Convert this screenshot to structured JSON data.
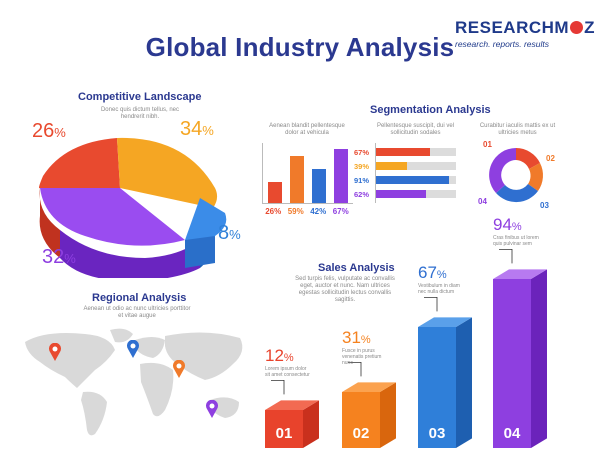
{
  "title": "Global Industry Analysis",
  "logo": {
    "word_left": "RESEARCH",
    "word_right": "M",
    "word_o": "O",
    "word_z": "Z",
    "tagline": "research. reports. results"
  },
  "competitive": {
    "heading": "Competitive Landscape",
    "text": "Donec quis dictum tellus, nec hendrerit nibh.",
    "slices": [
      {
        "value": "26",
        "unit": "%",
        "color": "#e84a2f"
      },
      {
        "value": "34",
        "unit": "%",
        "color": "#f5a623"
      },
      {
        "value": "8",
        "unit": "%",
        "color": "#2f80d8"
      },
      {
        "value": "32",
        "unit": "%",
        "color": "#8e3fe0"
      }
    ]
  },
  "segmentation": {
    "heading": "Segmentation Analysis",
    "col1_text": "Aenean blandit pellentesque dolor at vehicula",
    "col2_text": "Pellentesque suscipit, dui vel sollicitudin sodales",
    "col3_text": "Curabitur iaculis mattis ex ut ultricies metus",
    "vbars": [
      {
        "label": "26%",
        "value": 26,
        "color": "#e84a2f"
      },
      {
        "label": "59%",
        "value": 59,
        "color": "#f07a2a"
      },
      {
        "label": "42%",
        "value": 42,
        "color": "#2f6fd0"
      },
      {
        "label": "67%",
        "value": 67,
        "color": "#8e3fe0"
      }
    ],
    "hbars": [
      {
        "label": "67%",
        "value": 67,
        "color": "#e84a2f"
      },
      {
        "label": "39%",
        "value": 39,
        "color": "#f5a623"
      },
      {
        "label": "91%",
        "value": 91,
        "color": "#2f6fd0"
      },
      {
        "label": "62%",
        "value": 62,
        "color": "#8e3fe0"
      }
    ],
    "donut_labels": [
      "01",
      "02",
      "03",
      "04"
    ]
  },
  "regional": {
    "heading": "Regional Analysis",
    "text": "Aenean ut odio ac nunc ultricies porttitor et vitae augue"
  },
  "sales": {
    "heading": "Sales Analysis",
    "text": "Sed turpis felis, vulputate ac convallis eget, auctor et nunc. Nam ultrices egestas sollicitudin lectus convallis sagittis.",
    "bars": [
      {
        "num": "01",
        "value": "12",
        "unit": "%",
        "note": "Lorem ipsum dolor sit amet consectetur",
        "level": 12,
        "color": "#e8432c",
        "side": "#c9301d",
        "top": "#f26a52",
        "pct_color": "#e8432c"
      },
      {
        "num": "02",
        "value": "31",
        "unit": "%",
        "note": "Fusce in purus venenatis pretium nunc",
        "level": 31,
        "color": "#f5821f",
        "side": "#d9660d",
        "top": "#fba24f",
        "pct_color": "#f5821f"
      },
      {
        "num": "03",
        "value": "67",
        "unit": "%",
        "note": "Vestibulum in diam nec nulla dictum",
        "level": 67,
        "color": "#2f7fd9",
        "side": "#1e5fb0",
        "top": "#5aa0ea",
        "pct_color": "#2f6fd0"
      },
      {
        "num": "04",
        "value": "94",
        "unit": "%",
        "note": "Cras finibus ut lorem quis pulvinar sem",
        "level": 94,
        "color": "#8e3fe0",
        "side": "#6b23bb",
        "top": "#b77af0",
        "pct_color": "#8e3fe0"
      }
    ]
  }
}
